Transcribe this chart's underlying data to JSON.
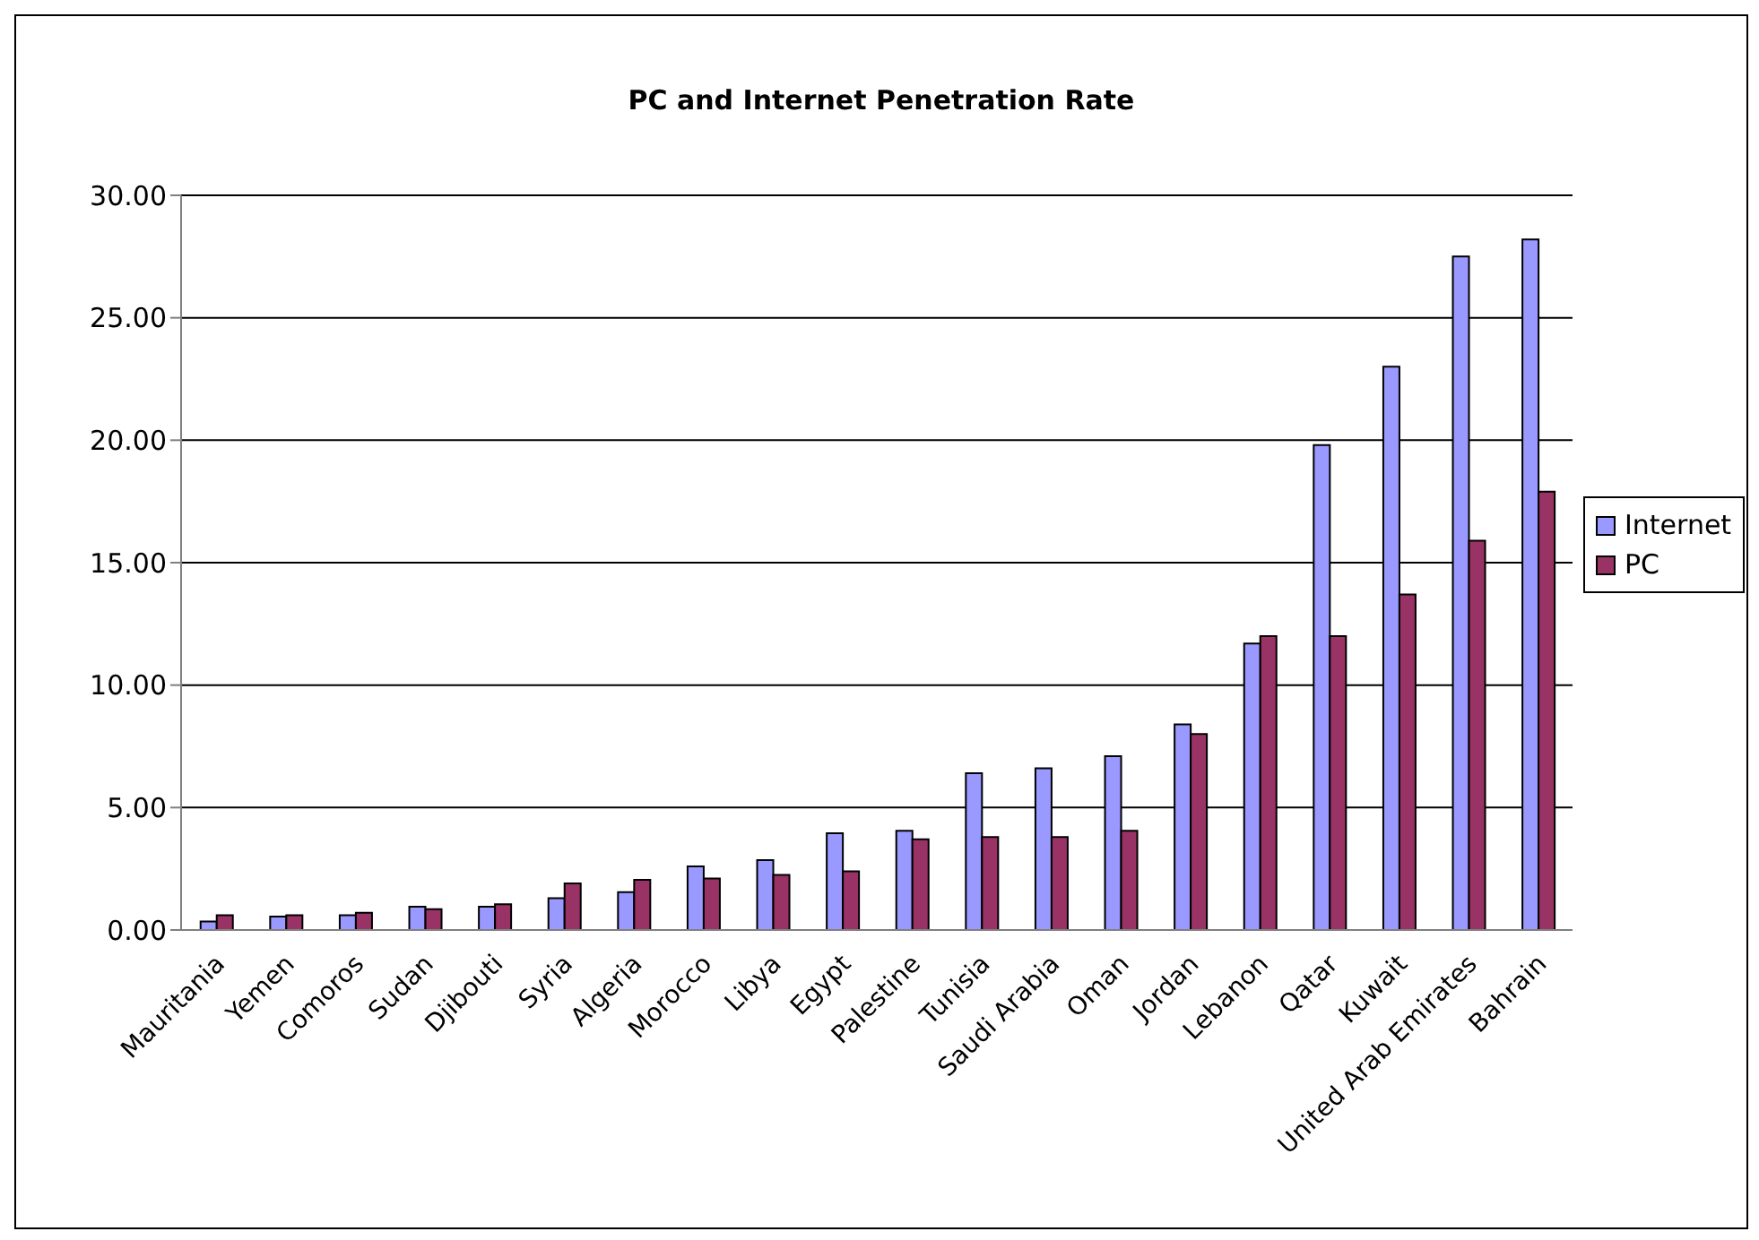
{
  "chart_data": {
    "type": "bar",
    "title": "PC and Internet Penetration Rate",
    "categories": [
      "Mauritania",
      "Yemen",
      "Comoros",
      "Sudan",
      "Djibouti",
      "Syria",
      "Algeria",
      "Morocco",
      "Libya",
      "Egypt",
      "Palestine",
      "Tunisia",
      "Saudi Arabia",
      "Oman",
      "Jordan",
      "Lebanon",
      "Qatar",
      "Kuwait",
      "United Arab Emirates",
      "Bahrain"
    ],
    "series": [
      {
        "name": "Internet",
        "color": "#9999ff",
        "values": [
          0.35,
          0.55,
          0.6,
          0.95,
          0.95,
          1.3,
          1.55,
          2.6,
          2.85,
          3.95,
          4.05,
          6.4,
          6.6,
          7.1,
          8.4,
          11.7,
          19.8,
          23.0,
          27.5,
          28.2
        ]
      },
      {
        "name": "PC",
        "color": "#993366",
        "values": [
          0.6,
          0.6,
          0.7,
          0.85,
          1.05,
          1.9,
          2.05,
          2.1,
          2.25,
          2.4,
          3.7,
          3.8,
          3.8,
          4.05,
          8.0,
          12.0,
          12.0,
          13.7,
          15.9,
          17.9
        ]
      }
    ],
    "ylim": [
      0,
      30
    ],
    "yticks": [
      {
        "value": 0,
        "label": "0.00"
      },
      {
        "value": 5,
        "label": "5.00"
      },
      {
        "value": 10,
        "label": "10.00"
      },
      {
        "value": 15,
        "label": "15.00"
      },
      {
        "value": 20,
        "label": "20.00"
      },
      {
        "value": 25,
        "label": "25.00"
      },
      {
        "value": 30,
        "label": "30.00"
      }
    ],
    "grid": "y",
    "legend": "right"
  }
}
